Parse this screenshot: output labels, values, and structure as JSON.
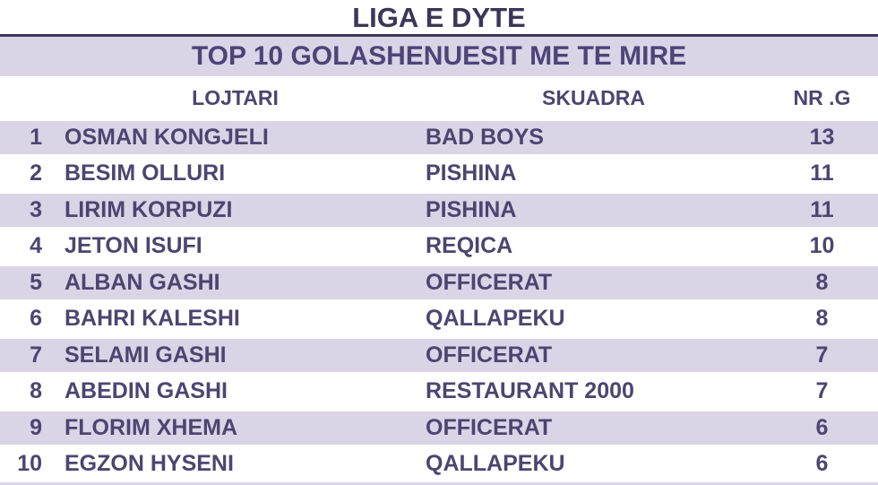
{
  "title": "LIGA E DYTE",
  "subtitle": "TOP 10 GOLASHENUESIT ME TE MIRE",
  "columns": {
    "rank": "",
    "player": "LOJTARI",
    "team": "SKUADRA",
    "goals": "NR .G"
  },
  "rows": [
    {
      "rank": "1",
      "player": "OSMAN KONGJELI",
      "team": "BAD BOYS",
      "goals": "13"
    },
    {
      "rank": "2",
      "player": "BESIM OLLURI",
      "team": "PISHINA",
      "goals": "11"
    },
    {
      "rank": "3",
      "player": "LIRIM KORPUZI",
      "team": "PISHINA",
      "goals": "11"
    },
    {
      "rank": "4",
      "player": "JETON ISUFI",
      "team": "REQICA",
      "goals": "10"
    },
    {
      "rank": "5",
      "player": "ALBAN GASHI",
      "team": "OFFICERAT",
      "goals": "8"
    },
    {
      "rank": "6",
      "player": "BAHRI KALESHI",
      "team": "QALLAPEKU",
      "goals": "8"
    },
    {
      "rank": "7",
      "player": "SELAMI GASHI",
      "team": "OFFICERAT",
      "goals": "7"
    },
    {
      "rank": "8",
      "player": "ABEDIN GASHI",
      "team": "RESTAURANT 2000",
      "goals": "7"
    },
    {
      "rank": "9",
      "player": "FLORIM XHEMA",
      "team": "OFFICERAT",
      "goals": "6"
    },
    {
      "rank": "10",
      "player": "EGZON HYSENI",
      "team": "QALLAPEKU",
      "goals": "6"
    }
  ],
  "colors": {
    "row_alt_bg": "#d9d5e6",
    "band_bg": "#d9d5e6",
    "text_purple": "#4d4570",
    "title_dark": "#3c3658",
    "divider_dark": "#3c3658",
    "background": "#ffffff"
  },
  "chart_data": {
    "type": "table",
    "title": "LIGA E DYTE",
    "subtitle": "TOP 10 GOLASHENUESIT ME TE MIRE",
    "columns": [
      "#",
      "LOJTARI",
      "SKUADRA",
      "NR .G"
    ],
    "rows": [
      [
        "1",
        "OSMAN KONGJELI",
        "BAD BOYS",
        13
      ],
      [
        "2",
        "BESIM OLLURI",
        "PISHINA",
        11
      ],
      [
        "3",
        "LIRIM KORPUZI",
        "PISHINA",
        11
      ],
      [
        "4",
        "JETON ISUFI",
        "REQICA",
        10
      ],
      [
        "5",
        "ALBAN GASHI",
        "OFFICERAT",
        8
      ],
      [
        "6",
        "BAHRI KALESHI",
        "QALLAPEKU",
        8
      ],
      [
        "7",
        "SELAMI GASHI",
        "OFFICERAT",
        7
      ],
      [
        "8",
        "ABEDIN GASHI",
        "RESTAURANT 2000",
        7
      ],
      [
        "9",
        "FLORIM XHEMA",
        "OFFICERAT",
        6
      ],
      [
        "10",
        "EGZON HYSENI",
        "QALLAPEKU",
        6
      ]
    ],
    "layout": {
      "striped": true,
      "header_band": true,
      "grid": false,
      "legend": "none"
    }
  }
}
